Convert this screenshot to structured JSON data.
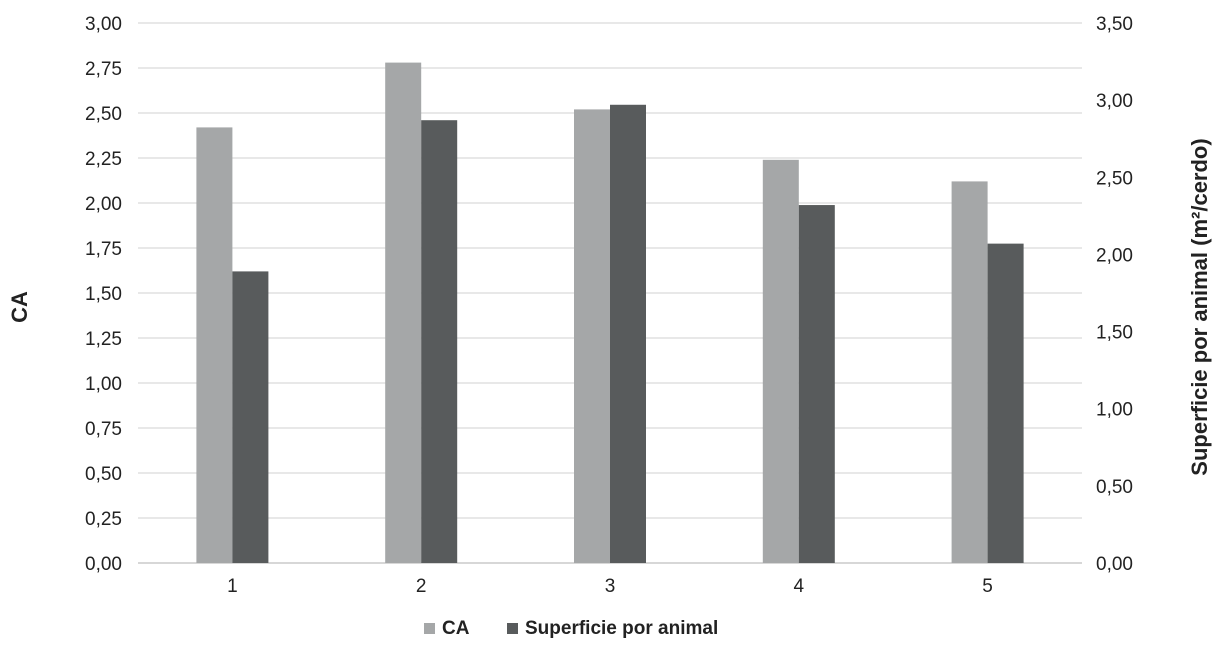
{
  "chart_data": {
    "type": "bar",
    "categories": [
      "1",
      "2",
      "3",
      "4",
      "5"
    ],
    "series": [
      {
        "name": "CA",
        "axis": "left",
        "color": "#a5a7a8",
        "values": [
          2.42,
          2.78,
          2.52,
          2.24,
          2.12
        ]
      },
      {
        "name": "Superficie por animal",
        "axis": "right",
        "color": "#585b5c",
        "values": [
          1.89,
          2.87,
          2.97,
          2.32,
          2.07
        ]
      }
    ],
    "ylabel": "CA",
    "ylabel_right": "Superficie por animal (m²/cerdo)",
    "ylim": [
      0,
      3.0
    ],
    "ylim_right": [
      0,
      3.5
    ],
    "yticks": [
      "0,00",
      "0,25",
      "0,50",
      "0,75",
      "1,00",
      "1,25",
      "1,50",
      "1,75",
      "2,00",
      "2,25",
      "2,50",
      "2,75",
      "3,00"
    ],
    "yticks_right": [
      "0,00",
      "0,50",
      "1,00",
      "1,50",
      "2,00",
      "2,50",
      "3,00",
      "3,50"
    ],
    "grid": true,
    "legend_position": "bottom-center"
  }
}
